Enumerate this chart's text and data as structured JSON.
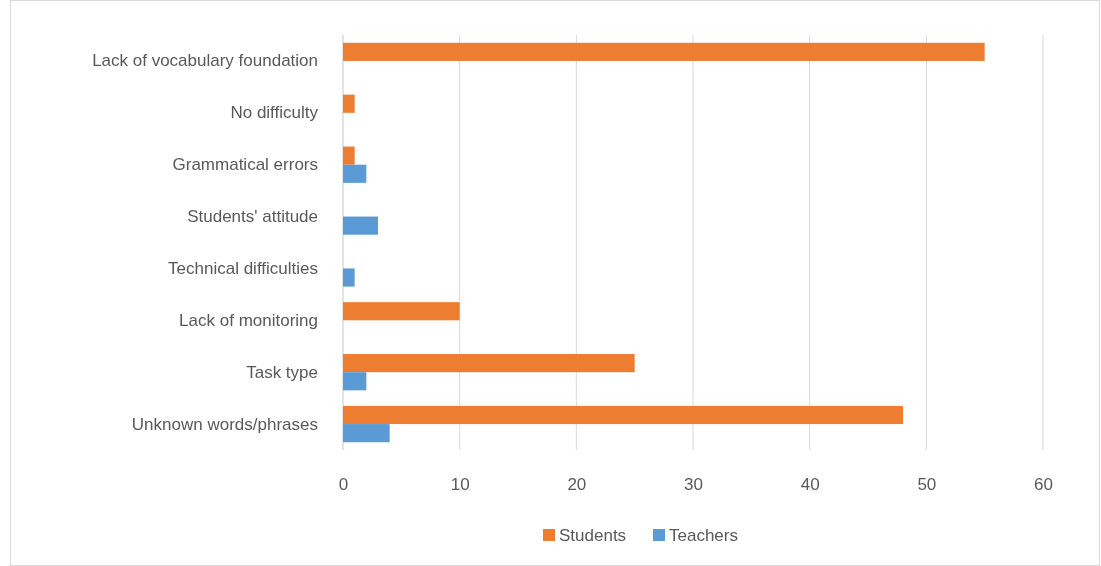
{
  "chart_data": {
    "type": "bar",
    "orientation": "horizontal",
    "categories": [
      "Lack of vocabulary foundation",
      "No difficulty",
      "Grammatical errors",
      "Students' attitude",
      "Technical difficulties",
      "Lack of monitoring",
      "Task type",
      "Unknown words/phrases"
    ],
    "series": [
      {
        "name": "Students",
        "color": "#ed7d31",
        "values": [
          55,
          1,
          1,
          null,
          null,
          10,
          25,
          48
        ]
      },
      {
        "name": "Teachers",
        "color": "#5b9bd5",
        "values": [
          null,
          null,
          2,
          3,
          1,
          null,
          2,
          4
        ]
      }
    ],
    "xlim": [
      0,
      60
    ],
    "xticks": [
      0,
      10,
      20,
      30,
      40,
      50,
      60
    ],
    "grid": "x",
    "legend": "bottom"
  }
}
